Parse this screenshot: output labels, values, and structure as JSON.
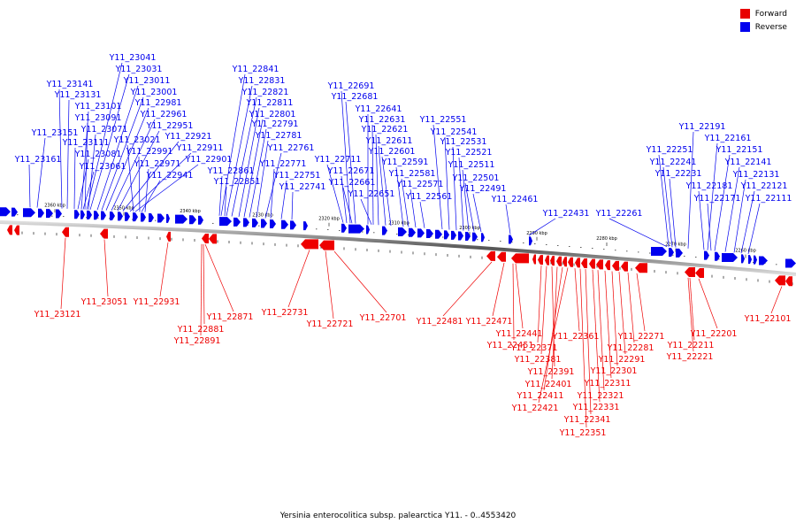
{
  "caption": "Yersinia enterocolitica subsp. palearctica Y11. - 0..4553420",
  "legend": {
    "forward": {
      "label": "Forward",
      "color": "#e80000"
    },
    "reverse": {
      "label": "Reverse",
      "color": "#0000ee"
    }
  },
  "colors": {
    "forward": "#ee0000",
    "reverse": "#0000ee",
    "backbone": "#888888"
  },
  "scale_ticks": [
    "2360 kbp",
    "2350 kbp",
    "2340 kbp",
    "2330 kbp",
    "2320 kbp",
    "2310 kbp",
    "2300 kbp",
    "2290 kbp",
    "2280 kbp",
    "2270 kbp",
    "2260 kbp"
  ],
  "reverse_labels": [
    "Y11_23041",
    "Y11_23031",
    "Y11_23011",
    "Y11_23001",
    "Y11_22981",
    "Y11_22961",
    "Y11_22951",
    "Y11_22921",
    "Y11_22911",
    "Y11_22901",
    "Y11_22941",
    "Y11_22971",
    "Y11_22991",
    "Y11_23021",
    "Y11_23071",
    "Y11_23091",
    "Y11_23101",
    "Y11_23131",
    "Y11_23141",
    "Y11_23151",
    "Y11_23161",
    "Y11_23111",
    "Y11_23081",
    "Y11_23061",
    "Y11_22841",
    "Y11_22831",
    "Y11_22821",
    "Y11_22811",
    "Y11_22801",
    "Y11_22791",
    "Y11_22781",
    "Y11_22761",
    "Y11_22771",
    "Y11_22751",
    "Y11_22741",
    "Y11_22861",
    "Y11_22851",
    "Y11_22691",
    "Y11_22681",
    "Y11_22641",
    "Y11_22631",
    "Y11_22621",
    "Y11_22611",
    "Y11_22601",
    "Y11_22591",
    "Y11_22581",
    "Y11_22571",
    "Y11_22561",
    "Y11_22711",
    "Y11_22671",
    "Y11_22661",
    "Y11_22651",
    "Y11_22551",
    "Y11_22541",
    "Y11_22531",
    "Y11_22521",
    "Y11_22511",
    "Y11_22501",
    "Y11_22491",
    "Y11_22461",
    "Y11_22431",
    "Y11_22261",
    "Y11_22191",
    "Y11_22161",
    "Y11_22151",
    "Y11_22141",
    "Y11_22131",
    "Y11_22121",
    "Y11_22111",
    "Y11_22251",
    "Y11_22241",
    "Y11_22231",
    "Y11_22181",
    "Y11_22171"
  ],
  "forward_labels": [
    "Y11_23121",
    "Y11_23051",
    "Y11_22931",
    "Y11_22871",
    "Y11_22881",
    "Y11_22891",
    "Y11_22731",
    "Y11_22721",
    "Y11_22701",
    "Y11_22481",
    "Y11_22471",
    "Y11_22441",
    "Y11_22451",
    "Y11_22361",
    "Y11_22371",
    "Y11_22381",
    "Y11_22391",
    "Y11_22401",
    "Y11_22411",
    "Y11_22421",
    "Y11_22271",
    "Y11_22281",
    "Y11_22291",
    "Y11_22301",
    "Y11_22311",
    "Y11_22321",
    "Y11_22331",
    "Y11_22341",
    "Y11_22351",
    "Y11_22201",
    "Y11_22211",
    "Y11_22221",
    "Y11_22101"
  ]
}
